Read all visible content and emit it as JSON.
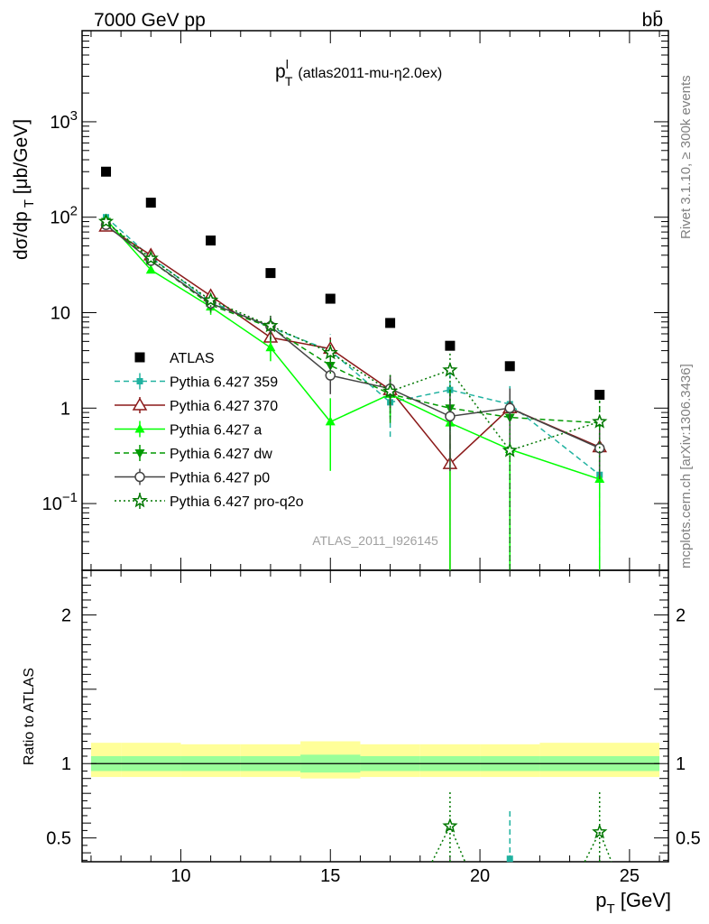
{
  "header": {
    "energy_label": "7000 GeV pp",
    "process_label": "bb̄"
  },
  "watermark": {
    "top": "Rivet 3.1.10, ≥ 300k events",
    "bottom": "mcplots.cern.ch [arXiv:1306.3436]"
  },
  "chart_data": [
    {
      "type": "scatter",
      "panel": "main",
      "title_main": "p",
      "title_sup": "l",
      "title_sub": "T",
      "title_rest": "(atlas2011-mu-η2.0ex)",
      "analysis_label": "ATLAS_2011_I926145",
      "ylabel": "dσ/dp_T [μb/GeV]",
      "yscale": "log",
      "ylim": [
        0.02,
        9000
      ],
      "xlim": [
        6.7,
        26.3
      ],
      "ytick_labels": [
        "10^-1",
        "1",
        "10",
        "10^2",
        "10^3"
      ],
      "x": [
        7.5,
        9,
        11,
        13,
        15,
        17,
        19,
        21,
        24
      ],
      "series": [
        {
          "name": "ATLAS",
          "style": "data",
          "color": "#000000",
          "values": [
            300,
            142,
            57,
            26,
            14,
            7.8,
            4.5,
            2.75,
            1.38
          ]
        },
        {
          "name": "Pythia 6.427 359",
          "style": "dashed",
          "marker": "square-small",
          "color": "#20b2a0",
          "values": [
            100,
            38,
            13,
            7,
            4,
            1.15,
            1.55,
            1.1,
            0.2
          ],
          "err_low": [
            5,
            3,
            3,
            2,
            2,
            0.65,
            1.0,
            1.09,
            0.19
          ],
          "err_high": [
            5,
            3,
            3,
            2,
            2,
            0.8,
            1.0,
            0.6,
            0.15
          ]
        },
        {
          "name": "Pythia 6.427 370",
          "style": "solid",
          "marker": "triangle-open",
          "color": "#8b1a1a",
          "values": [
            80,
            40,
            15,
            5.5,
            4.2,
            1.55,
            0.26,
            1.0,
            0.39
          ],
          "err_low": [
            4,
            3,
            2,
            1.5,
            1.3,
            0.5,
            0.259,
            0.5,
            0.2
          ],
          "err_high": [
            4,
            3,
            2,
            1.5,
            1.3,
            0.5,
            0.3,
            0.6,
            0.2
          ]
        },
        {
          "name": "Pythia 6.427 a",
          "style": "solid",
          "marker": "triangle-up",
          "color": "#00ff00",
          "values": [
            95,
            28,
            11.5,
            4.3,
            0.72,
            1.4,
            0.7,
            0.37,
            0.18
          ],
          "err_low": [
            4,
            2,
            2,
            1.2,
            0.5,
            0.6,
            0.699,
            0.369,
            0.179
          ],
          "err_high": [
            4,
            2,
            2,
            1.2,
            0.55,
            0.6,
            0.4,
            0.3,
            0.15
          ]
        },
        {
          "name": "Pythia 6.427 dw",
          "style": "dashed",
          "marker": "triangle-down",
          "color": "#009900",
          "values": [
            90,
            35,
            12,
            7,
            2.8,
            1.4,
            1.0,
            0.8,
            0.7
          ],
          "err_low": [
            4,
            3,
            2,
            2,
            1.2,
            0.7,
            0.7,
            0.799,
            0.5
          ],
          "err_high": [
            4,
            3,
            2,
            2,
            1.2,
            0.7,
            0.7,
            0.6,
            0.5
          ]
        },
        {
          "name": "Pythia 6.427 p0",
          "style": "solid",
          "marker": "circle-open",
          "color": "#444444",
          "values": [
            83,
            35,
            12.5,
            7.2,
            2.2,
            1.6,
            0.82,
            1.0,
            0.38
          ],
          "err_low": [
            4,
            3,
            2,
            2,
            0.8,
            0.6,
            0.6,
            0.6,
            0.2
          ],
          "err_high": [
            4,
            3,
            2,
            2,
            0.8,
            0.6,
            0.6,
            0.6,
            0.2
          ]
        },
        {
          "name": "Pythia 6.427 pro-q2o",
          "style": "dotted",
          "marker": "star-open",
          "color": "#007700",
          "values": [
            90,
            37,
            13.5,
            7.3,
            3.8,
            1.5,
            2.5,
            0.36,
            0.72
          ],
          "err_low": [
            4,
            3,
            2,
            2,
            1.5,
            0.7,
            1.3,
            0.359,
            0.5
          ],
          "err_high": [
            4,
            3,
            2,
            2,
            1.5,
            0.8,
            1.3,
            0.4,
            0.5
          ]
        }
      ]
    },
    {
      "type": "scatter",
      "panel": "ratio",
      "ylabel": "Ratio to ATLAS",
      "xlabel": "p_T [GeV]",
      "xlim": [
        6.7,
        26.3
      ],
      "ylim": [
        0.34,
        2.3
      ],
      "xtick_labels": [
        "10",
        "15",
        "20",
        "25"
      ],
      "ytick_labels": [
        "0.5",
        "1",
        "2"
      ],
      "band_edges": [
        7,
        8,
        10,
        12,
        14,
        16,
        18,
        20,
        22,
        26
      ],
      "inner_band": [
        0.95,
        0.95,
        0.95,
        0.95,
        0.94,
        0.95,
        0.95,
        0.95,
        0.95
      ],
      "inner_band_high": [
        1.05,
        1.05,
        1.05,
        1.05,
        1.06,
        1.05,
        1.05,
        1.05,
        1.05
      ],
      "outer_band": [
        0.91,
        0.91,
        0.91,
        0.91,
        0.9,
        0.91,
        0.91,
        0.91,
        0.91
      ],
      "outer_band_high": [
        1.14,
        1.14,
        1.13,
        1.13,
        1.15,
        1.13,
        1.13,
        1.13,
        1.14
      ],
      "points": [
        {
          "series": "Pythia 6.427 pro-q2o",
          "x": 19,
          "y": 0.58,
          "err_low": 0.3,
          "err_high": 0.24
        },
        {
          "series": "Pythia 6.427 359",
          "x": 21,
          "y": 0.36,
          "err_low": 0.05,
          "err_high": 0.33
        },
        {
          "series": "Pythia 6.427 pro-q2o",
          "x": 24,
          "y": 0.54,
          "err_low": 0.25,
          "err_high": 0.28
        }
      ]
    }
  ]
}
